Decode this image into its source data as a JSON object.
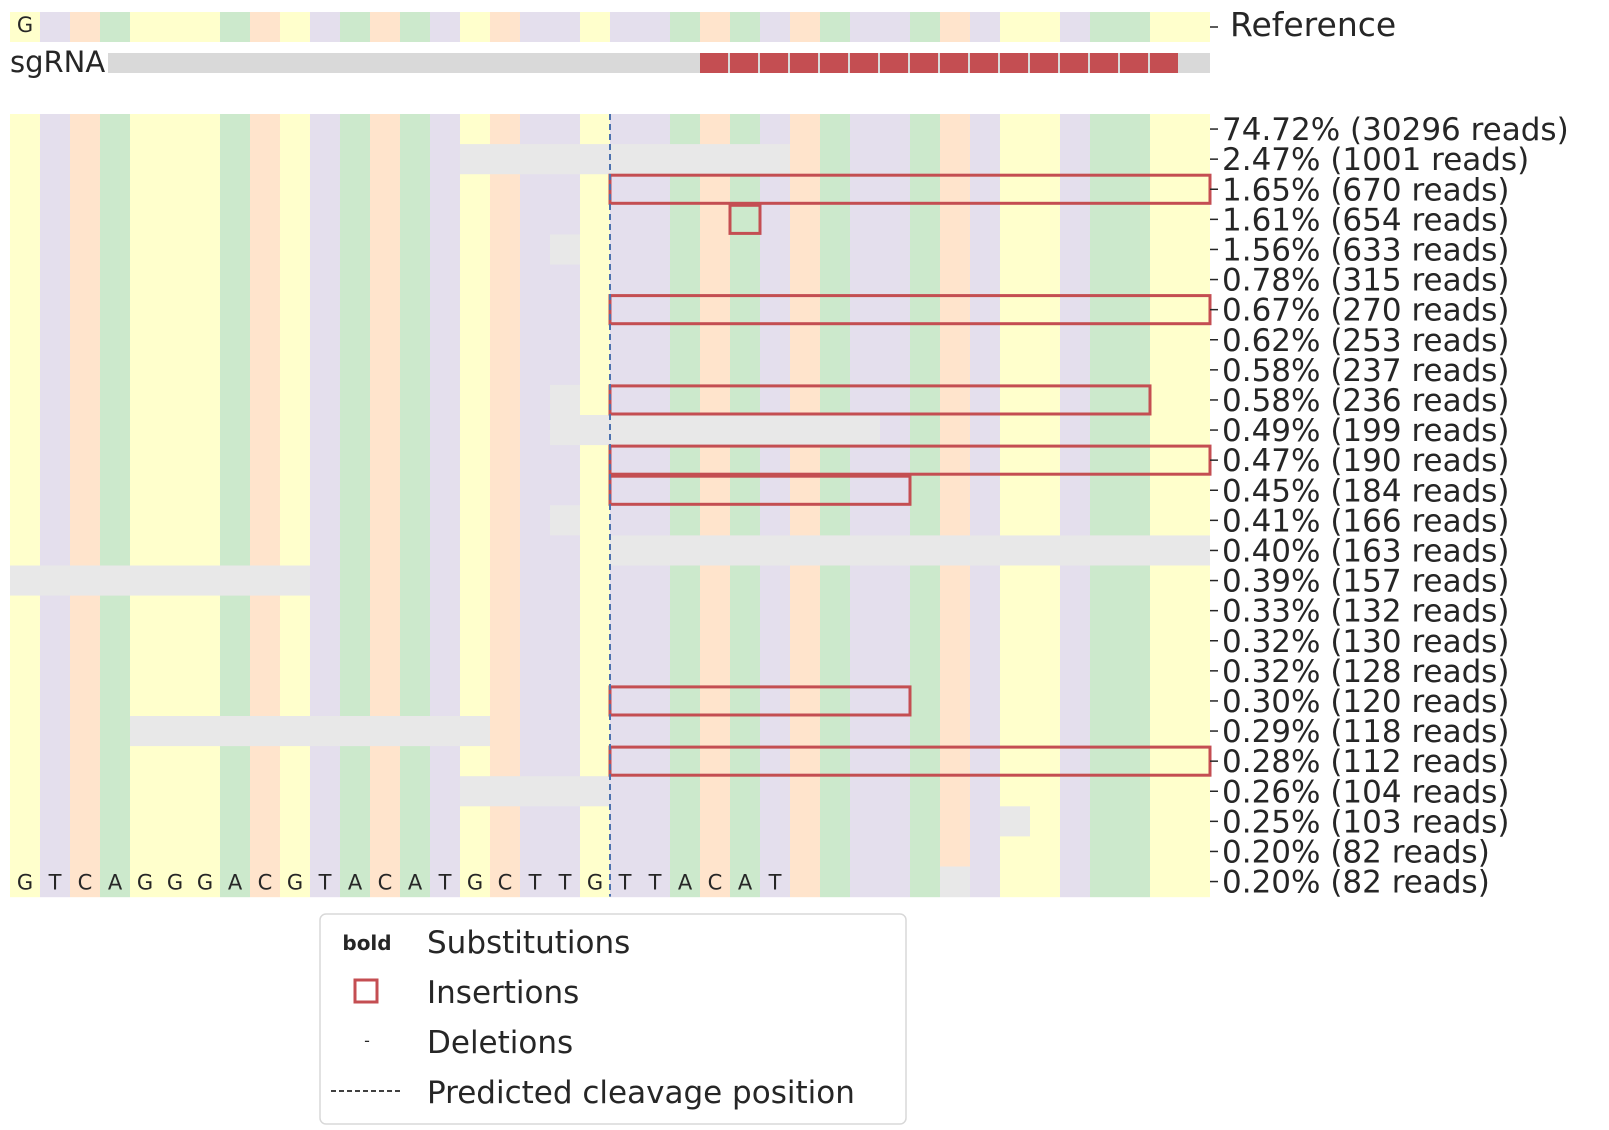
{
  "chart_data": {
    "type": "heatmap",
    "title": "",
    "reference_label": "Reference",
    "sgrna_label": "sgRNA",
    "reference_first_base": "G",
    "allele_frequency_labels": [
      "74.72% (30296 reads)",
      "2.47% (1001 reads)",
      "1.65% (670 reads)",
      "1.61% (654 reads)",
      "1.56% (633 reads)",
      "0.78% (315 reads)",
      "0.67% (270 reads)",
      "0.62% (253 reads)",
      "0.58% (237 reads)",
      "0.58% (236 reads)",
      "0.49% (199 reads)",
      "0.47% (190 reads)",
      "0.45% (184 reads)",
      "0.41% (166 reads)",
      "0.40% (163 reads)",
      "0.39% (157 reads)",
      "0.33% (132 reads)",
      "0.32% (130 reads)",
      "0.32% (128 reads)",
      "0.30% (120 reads)",
      "0.29% (118 reads)",
      "0.28% (112 reads)",
      "0.26% (104 reads)",
      "0.25% (103 reads)",
      "0.20% (82 reads)",
      "0.20% (82 reads)"
    ],
    "bottom_row_sequence": [
      "G",
      "T",
      "C",
      "A",
      "G",
      "G",
      "G",
      "A",
      "C",
      "G",
      "T",
      "A",
      "C",
      "A",
      "T",
      "G",
      "C",
      "T",
      "T",
      "G",
      "T",
      "T",
      "A",
      "C",
      "A",
      "T"
    ],
    "sgrna_positions": {
      "start": 23,
      "end": 39,
      "total": 40
    },
    "cleavage_position": 20,
    "legend": {
      "substitutions_symbol": "bold",
      "substitutions": "Substitutions",
      "insertions": "Insertions",
      "deletions_symbol": "-",
      "deletions": "Deletions",
      "cleavage": "Predicted cleavage position"
    },
    "colors": {
      "A": "#cce9cc",
      "C": "#ffe4cc",
      "G": "#ffffcc",
      "T": "#e4dfed",
      "deletion": "#e8e8e8",
      "insertion": "#c44e52",
      "sgrna": "#c44e52",
      "sgrna_bg": "#d9d9d9",
      "cleavage_line": "#4c72b0"
    }
  }
}
